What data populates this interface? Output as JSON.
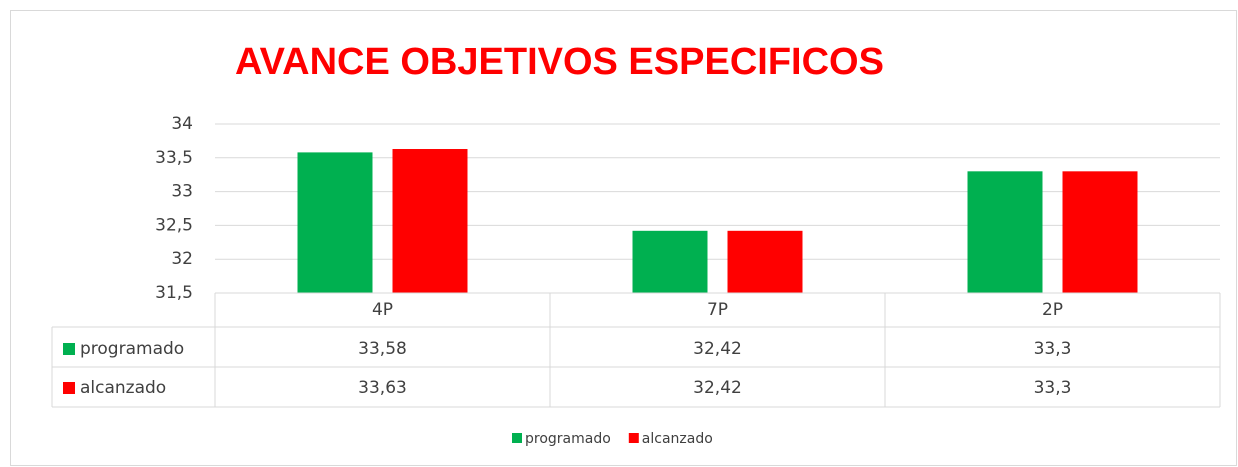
{
  "chart_data": {
    "type": "bar",
    "title": "AVANCE OBJETIVOS ESPECIFICOS",
    "categories": [
      "4P",
      "7P",
      "2P"
    ],
    "series": [
      {
        "name": "programado",
        "color": "#00b050",
        "values": [
          33.58,
          32.42,
          33.3
        ],
        "value_labels": [
          "33,58",
          "32,42",
          "33,3"
        ]
      },
      {
        "name": "alcanzado",
        "color": "#ff0000",
        "values": [
          33.63,
          32.42,
          33.3
        ],
        "value_labels": [
          "33,63",
          "32,42",
          "33,3"
        ]
      }
    ],
    "ylim": [
      31.5,
      34
    ],
    "yticks": [
      {
        "value": 31.5,
        "label": "31,5"
      },
      32,
      {
        "value": 32.5,
        "label": "32,5"
      },
      33,
      {
        "value": 33.5,
        "label": "33,5"
      },
      34
    ],
    "grid": true,
    "legend": "bottom",
    "data_table": true
  }
}
